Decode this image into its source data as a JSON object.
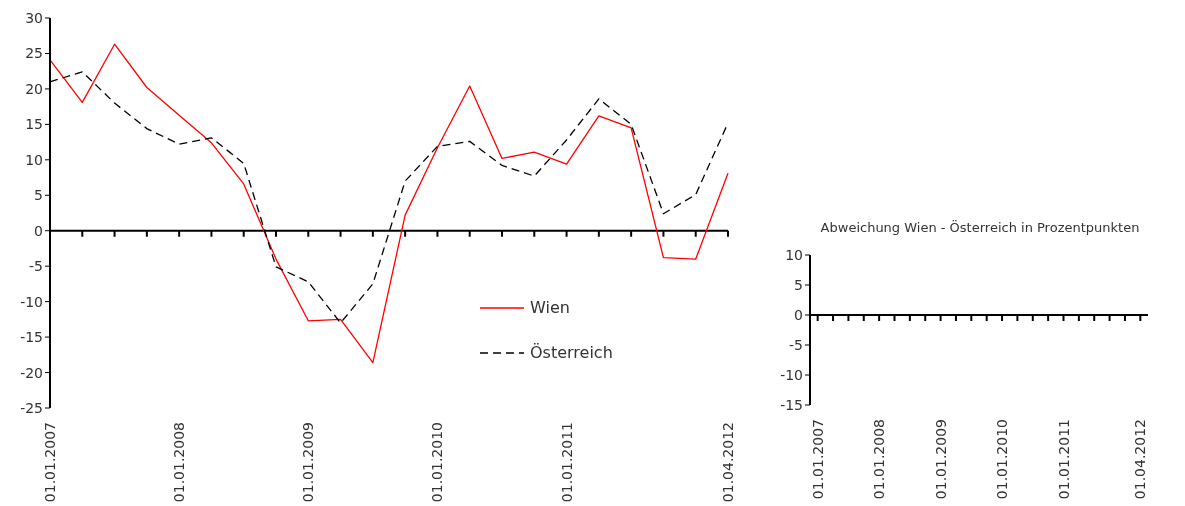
{
  "chart_data": [
    {
      "type": "line",
      "categories": [
        "01.01.2007",
        null,
        null,
        null,
        "01.01.2008",
        null,
        null,
        null,
        "01.01.2009",
        null,
        null,
        null,
        "01.01.2010",
        null,
        null,
        null,
        "01.01.2011",
        null,
        null,
        null,
        null,
        "01.04.2012"
      ],
      "series": [
        {
          "name": "Wien",
          "color": "#ff0000",
          "line_style": "solid",
          "values": [
            24.1,
            18.1,
            26.3,
            20.2,
            16.3,
            12.4,
            6.6,
            -4.0,
            -12.7,
            -12.5,
            -18.6,
            2.2,
            11.7,
            20.4,
            10.2,
            11.1,
            9.4,
            16.2,
            14.5,
            -3.8,
            -4.0,
            8.1
          ]
        },
        {
          "name": "Österreich",
          "color": "#000000",
          "line_style": "dashed",
          "values": [
            21.0,
            22.4,
            18.0,
            14.4,
            12.2,
            13.1,
            9.5,
            -5.1,
            -7.2,
            -13.0,
            -7.5,
            7.0,
            11.9,
            12.6,
            9.2,
            7.7,
            12.8,
            18.6,
            15.0,
            2.4,
            5.1,
            15.2
          ]
        }
      ],
      "ylim": [
        -25,
        30
      ],
      "yticks": [
        -25,
        -20,
        -15,
        -10,
        -5,
        0,
        5,
        10,
        15,
        20,
        25,
        30
      ],
      "grid": false,
      "legend": "bottom",
      "marker": "none",
      "ref_lines": [
        {
          "axis": "y",
          "value": 0,
          "color": "#000000"
        }
      ]
    },
    {
      "type": "bar",
      "title": "Abweichung Wien - Österreich  in Prozentpunkten",
      "categories": [
        "01.01.2007",
        null,
        null,
        null,
        "01.01.2008",
        null,
        null,
        null,
        "01.01.2009",
        null,
        null,
        null,
        "01.01.2010",
        null,
        null,
        null,
        "01.01.2011",
        null,
        null,
        null,
        null,
        "01.04.2012"
      ],
      "values": [
        null,
        null,
        null,
        null,
        null,
        null,
        null,
        null,
        null,
        null,
        null,
        null,
        null,
        null,
        null,
        null,
        null,
        null,
        null,
        null,
        null,
        null
      ],
      "ylim": [
        -15,
        10
      ],
      "yticks": [
        -15,
        -10,
        -5,
        0,
        5,
        10
      ],
      "grid": false,
      "ref_lines": [
        {
          "axis": "y",
          "value": 0,
          "color": "#000000"
        }
      ]
    }
  ]
}
